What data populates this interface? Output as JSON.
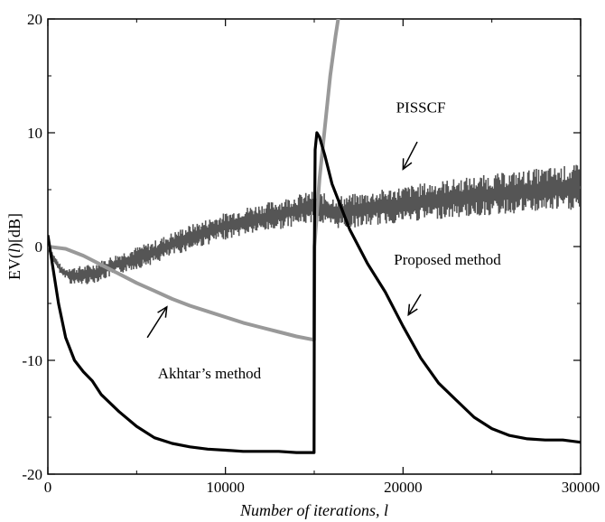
{
  "chart_data": {
    "type": "line",
    "title": "",
    "xlabel": "Number of iterations, l",
    "ylabel": "EV(l)[dB]",
    "xlim": [
      0,
      30000
    ],
    "ylim": [
      -20,
      20
    ],
    "x_ticks": [
      0,
      10000,
      20000,
      30000
    ],
    "y_ticks": [
      -20,
      -10,
      0,
      10,
      20
    ],
    "x_tick_labels": [
      "0",
      "10000",
      "20000",
      "30000"
    ],
    "y_tick_labels": [
      "-20",
      "-10",
      "0",
      "10",
      "20"
    ],
    "grid": false,
    "legend": "none (curves labeled by annotations)",
    "series": [
      {
        "label": "Proposed method",
        "color": "#000000",
        "points": [
          [
            0,
            1.0
          ],
          [
            300,
            -2
          ],
          [
            600,
            -5
          ],
          [
            1000,
            -8
          ],
          [
            1500,
            -10
          ],
          [
            2000,
            -11
          ],
          [
            2500,
            -11.8
          ],
          [
            3000,
            -13
          ],
          [
            4000,
            -14.5
          ],
          [
            5000,
            -15.8
          ],
          [
            6000,
            -16.8
          ],
          [
            7000,
            -17.3
          ],
          [
            8000,
            -17.6
          ],
          [
            9000,
            -17.8
          ],
          [
            10000,
            -17.9
          ],
          [
            11000,
            -18.0
          ],
          [
            12000,
            -18.0
          ],
          [
            13000,
            -18.0
          ],
          [
            14000,
            -18.1
          ],
          [
            14990,
            -18.1
          ],
          [
            15010,
            0.0
          ],
          [
            15050,
            8.5
          ],
          [
            15150,
            10.0
          ],
          [
            15300,
            9.6
          ],
          [
            15600,
            8.0
          ],
          [
            16000,
            5.5
          ],
          [
            17000,
            1.5
          ],
          [
            18000,
            -1.5
          ],
          [
            19000,
            -4.0
          ],
          [
            20000,
            -7.0
          ],
          [
            21000,
            -9.8
          ],
          [
            22000,
            -12.0
          ],
          [
            23000,
            -13.5
          ],
          [
            24000,
            -15.0
          ],
          [
            25000,
            -16.0
          ],
          [
            26000,
            -16.6
          ],
          [
            27000,
            -16.9
          ],
          [
            28000,
            -17.0
          ],
          [
            29000,
            -17.0
          ],
          [
            30000,
            -17.2
          ]
        ]
      },
      {
        "label": "Akhtar's method",
        "color": "#999999",
        "points": [
          [
            0,
            0.0
          ],
          [
            1000,
            -0.2
          ],
          [
            2000,
            -0.8
          ],
          [
            3000,
            -1.6
          ],
          [
            4000,
            -2.4
          ],
          [
            5000,
            -3.2
          ],
          [
            6000,
            -3.9
          ],
          [
            7000,
            -4.6
          ],
          [
            8000,
            -5.2
          ],
          [
            9000,
            -5.7
          ],
          [
            10000,
            -6.2
          ],
          [
            11000,
            -6.7
          ],
          [
            12000,
            -7.1
          ],
          [
            13000,
            -7.5
          ],
          [
            14000,
            -7.9
          ],
          [
            14990,
            -8.2
          ],
          [
            15010,
            0.0
          ],
          [
            15300,
            6.0
          ],
          [
            15600,
            10.5
          ],
          [
            15900,
            15.0
          ],
          [
            16200,
            18.5
          ],
          [
            16400,
            20.5
          ]
        ]
      },
      {
        "label": "PISSCF",
        "color": "#555555",
        "points": [
          [
            0,
            0.0
          ],
          [
            300,
            -1.0
          ],
          [
            800,
            -2.2
          ],
          [
            1500,
            -2.6
          ],
          [
            2500,
            -2.4
          ],
          [
            4000,
            -1.5
          ],
          [
            5000,
            -1.0
          ],
          [
            6000,
            -0.5
          ],
          [
            7000,
            0.2
          ],
          [
            8000,
            0.8
          ],
          [
            9000,
            1.3
          ],
          [
            10000,
            1.8
          ],
          [
            11000,
            2.2
          ],
          [
            12000,
            2.5
          ],
          [
            13000,
            2.8
          ],
          [
            14000,
            3.2
          ],
          [
            15000,
            3.5
          ],
          [
            15500,
            3.3
          ],
          [
            16000,
            3.0
          ],
          [
            17000,
            3.1
          ],
          [
            18000,
            3.3
          ],
          [
            19000,
            3.5
          ],
          [
            20000,
            3.7
          ],
          [
            22000,
            4.1
          ],
          [
            24000,
            4.4
          ],
          [
            26000,
            4.7
          ],
          [
            28000,
            5.0
          ],
          [
            30000,
            5.2
          ]
        ]
      }
    ],
    "annotations": [
      {
        "text": "PISSCF",
        "data_x": 21000,
        "data_y": 11.8
      },
      {
        "text": "Proposed method",
        "data_x": 22500,
        "data_y": -1.6
      },
      {
        "text": "Akhtar’s method",
        "data_x": 9100,
        "data_y": -11.6
      }
    ],
    "arrows": [
      {
        "target": "PISSCF",
        "from": [
          20800,
          9.2
        ],
        "to": [
          20000,
          6.8
        ]
      },
      {
        "target": "Proposed method",
        "from": [
          21000,
          -4.2
        ],
        "to": [
          20300,
          -6.0
        ]
      },
      {
        "target": "Akhtar's method",
        "from": [
          5600,
          -8.0
        ],
        "to": [
          6700,
          -5.3
        ]
      }
    ]
  }
}
